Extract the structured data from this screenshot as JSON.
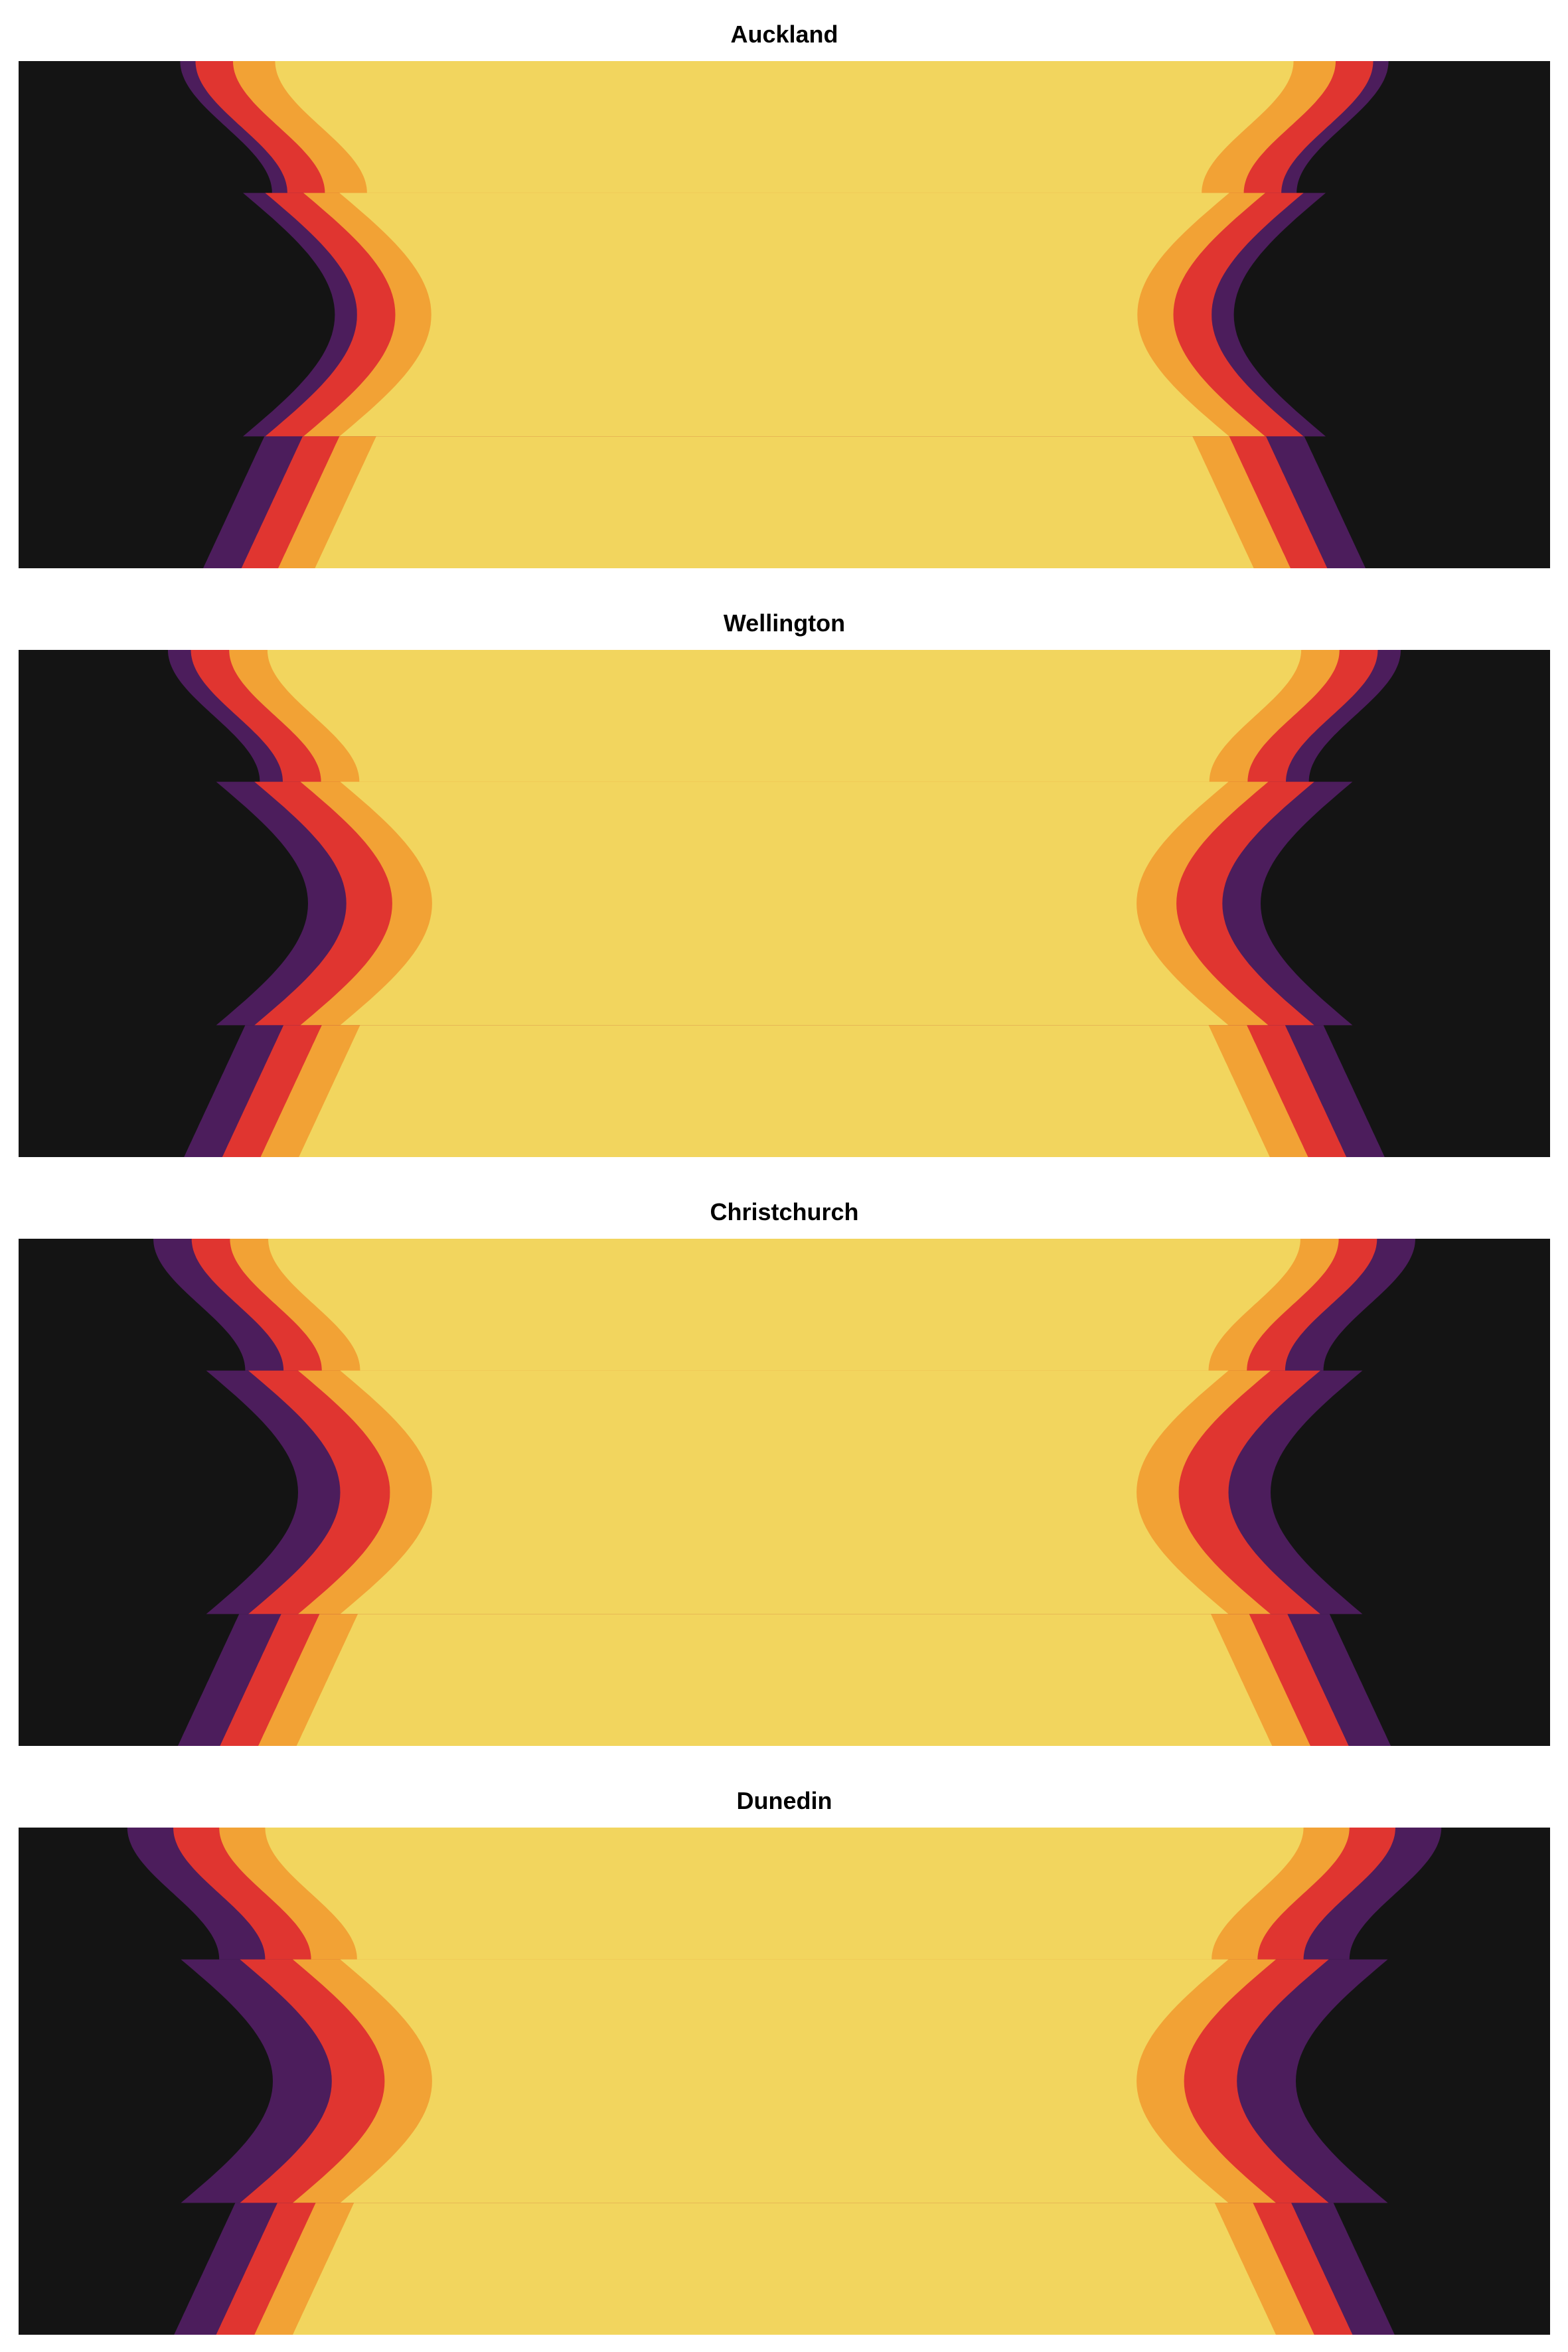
{
  "chart_data": [
    {
      "type": "area",
      "title": "Auckland",
      "segments": [
        {
          "levels": [
            0.585,
            0.64,
            0.689,
            0.709
          ]
        },
        {
          "levels": [
            0.531,
            0.578,
            0.628,
            0.657
          ]
        },
        {
          "levels": [
            0.563,
            0.611,
            0.659,
            0.709
          ]
        }
      ]
    },
    {
      "type": "area",
      "title": "Wellington",
      "segments": [
        {
          "levels": [
            0.595,
            0.645,
            0.695,
            0.725
          ]
        },
        {
          "levels": [
            0.53,
            0.582,
            0.642,
            0.692
          ]
        },
        {
          "levels": [
            0.584,
            0.634,
            0.684,
            0.734
          ]
        }
      ]
    },
    {
      "type": "area",
      "title": "Christchurch",
      "segments": [
        {
          "levels": [
            0.594,
            0.644,
            0.694,
            0.744
          ]
        },
        {
          "levels": [
            0.53,
            0.585,
            0.65,
            0.705
          ]
        },
        {
          "levels": [
            0.587,
            0.637,
            0.687,
            0.742
          ]
        }
      ]
    },
    {
      "type": "area",
      "title": "Dunedin",
      "segments": [
        {
          "levels": [
            0.598,
            0.658,
            0.718,
            0.778
          ]
        },
        {
          "levels": [
            0.53,
            0.592,
            0.661,
            0.738
          ]
        },
        {
          "levels": [
            0.592,
            0.642,
            0.692,
            0.747
          ]
        }
      ]
    }
  ],
  "colors": {
    "background": "#141414",
    "bands": [
      "#4c1d5c",
      "#e03530",
      "#f2a235",
      "#f2d55e"
    ]
  }
}
